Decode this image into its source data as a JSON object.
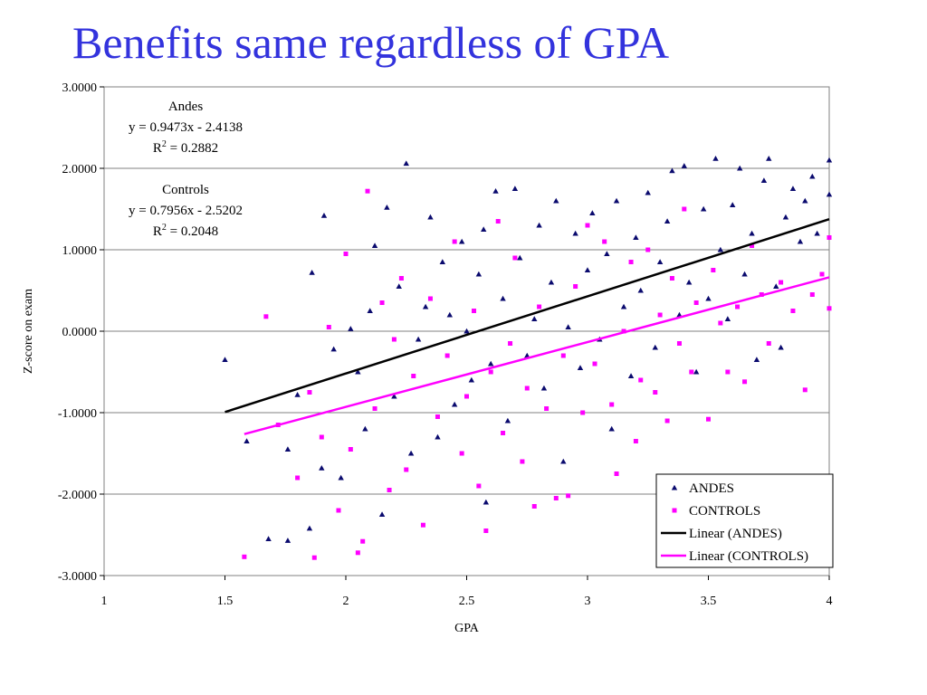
{
  "slide": {
    "title": "Benefits same regardless of GPA"
  },
  "chart_data": {
    "type": "scatter",
    "xlabel": "GPA",
    "ylabel": "Z-score on exam",
    "xlim": [
      1,
      4
    ],
    "ylim": [
      -3,
      3
    ],
    "x_ticks": [
      "1",
      "1.5",
      "2",
      "2.5",
      "3",
      "3.5",
      "4"
    ],
    "y_ticks": [
      "3.0000",
      "2.0000",
      "1.0000",
      "0.0000",
      "-1.0000",
      "-2.0000",
      "-3.0000"
    ],
    "grid": "horizontal major gridlines",
    "legend_position": "bottom-right",
    "series": [
      {
        "name": "ANDES",
        "marker": "triangle",
        "color": "#0a0a6e",
        "points": [
          [
            1.5,
            -0.35
          ],
          [
            1.59,
            -1.35
          ],
          [
            1.68,
            -2.55
          ],
          [
            1.76,
            -2.57
          ],
          [
            1.76,
            -1.45
          ],
          [
            1.8,
            -0.78
          ],
          [
            1.85,
            -2.42
          ],
          [
            1.86,
            0.72
          ],
          [
            1.9,
            -1.68
          ],
          [
            1.91,
            1.42
          ],
          [
            1.95,
            -0.22
          ],
          [
            1.98,
            -1.8
          ],
          [
            2.02,
            0.03
          ],
          [
            2.05,
            -0.5
          ],
          [
            2.08,
            -1.2
          ],
          [
            2.1,
            0.25
          ],
          [
            2.12,
            1.05
          ],
          [
            2.15,
            -2.25
          ],
          [
            2.17,
            1.52
          ],
          [
            2.2,
            -0.8
          ],
          [
            2.22,
            0.55
          ],
          [
            2.25,
            2.06
          ],
          [
            2.27,
            -1.5
          ],
          [
            2.3,
            -0.1
          ],
          [
            2.33,
            0.3
          ],
          [
            2.35,
            1.4
          ],
          [
            2.38,
            -1.3
          ],
          [
            2.4,
            0.85
          ],
          [
            2.43,
            0.2
          ],
          [
            2.45,
            -0.9
          ],
          [
            2.48,
            1.1
          ],
          [
            2.5,
            0.0
          ],
          [
            2.52,
            -0.6
          ],
          [
            2.55,
            0.7
          ],
          [
            2.57,
            1.25
          ],
          [
            2.58,
            -2.1
          ],
          [
            2.6,
            -0.4
          ],
          [
            2.62,
            1.72
          ],
          [
            2.65,
            0.4
          ],
          [
            2.67,
            -1.1
          ],
          [
            2.7,
            1.75
          ],
          [
            2.72,
            0.9
          ],
          [
            2.75,
            -0.3
          ],
          [
            2.78,
            0.15
          ],
          [
            2.8,
            1.3
          ],
          [
            2.82,
            -0.7
          ],
          [
            2.85,
            0.6
          ],
          [
            2.87,
            1.6
          ],
          [
            2.9,
            -1.6
          ],
          [
            2.92,
            0.05
          ],
          [
            2.95,
            1.2
          ],
          [
            2.97,
            -0.45
          ],
          [
            3.0,
            0.75
          ],
          [
            3.02,
            1.45
          ],
          [
            3.05,
            -0.1
          ],
          [
            3.08,
            0.95
          ],
          [
            3.1,
            -1.2
          ],
          [
            3.12,
            1.6
          ],
          [
            3.15,
            0.3
          ],
          [
            3.18,
            -0.55
          ],
          [
            3.2,
            1.15
          ],
          [
            3.22,
            0.5
          ],
          [
            3.25,
            1.7
          ],
          [
            3.28,
            -0.2
          ],
          [
            3.3,
            0.85
          ],
          [
            3.33,
            1.35
          ],
          [
            3.35,
            1.97
          ],
          [
            3.38,
            0.2
          ],
          [
            3.4,
            2.03
          ],
          [
            3.42,
            0.6
          ],
          [
            3.45,
            -0.5
          ],
          [
            3.48,
            1.5
          ],
          [
            3.5,
            0.4
          ],
          [
            3.53,
            2.12
          ],
          [
            3.55,
            1.0
          ],
          [
            3.58,
            0.15
          ],
          [
            3.6,
            1.55
          ],
          [
            3.63,
            2.0
          ],
          [
            3.65,
            0.7
          ],
          [
            3.68,
            1.2
          ],
          [
            3.7,
            -0.35
          ],
          [
            3.73,
            1.85
          ],
          [
            3.75,
            2.12
          ],
          [
            3.78,
            0.55
          ],
          [
            3.8,
            -0.2
          ],
          [
            3.82,
            1.4
          ],
          [
            3.85,
            1.75
          ],
          [
            3.88,
            1.1
          ],
          [
            3.9,
            1.6
          ],
          [
            3.93,
            1.9
          ],
          [
            3.95,
            1.2
          ],
          [
            4.0,
            2.1
          ],
          [
            4.0,
            1.68
          ]
        ],
        "trend": {
          "label": "Linear (ANDES)",
          "slope": 0.9473,
          "intercept": -2.4138,
          "x_range": [
            1.5,
            4
          ]
        }
      },
      {
        "name": "CONTROLS",
        "marker": "square",
        "color": "#ff00ff",
        "points": [
          [
            1.58,
            -2.77
          ],
          [
            1.67,
            0.18
          ],
          [
            1.72,
            -1.15
          ],
          [
            1.8,
            -1.8
          ],
          [
            1.85,
            -0.75
          ],
          [
            1.87,
            -2.78
          ],
          [
            1.9,
            -1.3
          ],
          [
            1.93,
            0.05
          ],
          [
            1.97,
            -2.2
          ],
          [
            2.0,
            0.95
          ],
          [
            2.02,
            -1.45
          ],
          [
            2.05,
            -2.72
          ],
          [
            2.07,
            -2.58
          ],
          [
            2.09,
            1.72
          ],
          [
            2.12,
            -0.95
          ],
          [
            2.15,
            0.35
          ],
          [
            2.18,
            -1.95
          ],
          [
            2.2,
            -0.1
          ],
          [
            2.23,
            0.65
          ],
          [
            2.25,
            -1.7
          ],
          [
            2.28,
            -0.55
          ],
          [
            2.32,
            -2.38
          ],
          [
            2.35,
            0.4
          ],
          [
            2.38,
            -1.05
          ],
          [
            2.42,
            -0.3
          ],
          [
            2.45,
            1.1
          ],
          [
            2.48,
            -1.5
          ],
          [
            2.5,
            -0.8
          ],
          [
            2.53,
            0.25
          ],
          [
            2.55,
            -1.9
          ],
          [
            2.58,
            -2.45
          ],
          [
            2.6,
            -0.5
          ],
          [
            2.63,
            1.35
          ],
          [
            2.65,
            -1.25
          ],
          [
            2.68,
            -0.15
          ],
          [
            2.7,
            0.9
          ],
          [
            2.73,
            -1.6
          ],
          [
            2.75,
            -0.7
          ],
          [
            2.78,
            -2.15
          ],
          [
            2.8,
            0.3
          ],
          [
            2.83,
            -0.95
          ],
          [
            2.87,
            -2.05
          ],
          [
            2.9,
            -0.3
          ],
          [
            2.92,
            -2.02
          ],
          [
            2.95,
            0.55
          ],
          [
            2.98,
            -1.0
          ],
          [
            3.0,
            1.3
          ],
          [
            3.03,
            -0.4
          ],
          [
            3.07,
            1.1
          ],
          [
            3.1,
            -0.9
          ],
          [
            3.12,
            -1.75
          ],
          [
            3.15,
            0.0
          ],
          [
            3.18,
            0.85
          ],
          [
            3.2,
            -1.35
          ],
          [
            3.22,
            -0.6
          ],
          [
            3.25,
            1.0
          ],
          [
            3.28,
            -0.75
          ],
          [
            3.3,
            0.2
          ],
          [
            3.33,
            -1.1
          ],
          [
            3.35,
            0.65
          ],
          [
            3.38,
            -0.15
          ],
          [
            3.4,
            1.5
          ],
          [
            3.43,
            -0.5
          ],
          [
            3.45,
            0.35
          ],
          [
            3.5,
            -1.08
          ],
          [
            3.52,
            0.75
          ],
          [
            3.55,
            0.1
          ],
          [
            3.58,
            -0.5
          ],
          [
            3.62,
            0.3
          ],
          [
            3.65,
            -0.62
          ],
          [
            3.68,
            1.05
          ],
          [
            3.72,
            0.45
          ],
          [
            3.75,
            -0.15
          ],
          [
            3.8,
            0.6
          ],
          [
            3.85,
            0.25
          ],
          [
            3.9,
            -0.72
          ],
          [
            3.93,
            0.45
          ],
          [
            3.97,
            0.7
          ],
          [
            4.0,
            1.15
          ],
          [
            4.0,
            0.28
          ]
        ],
        "trend": {
          "label": "Linear (CONTROLS)",
          "slope": 0.7956,
          "intercept": -2.5202,
          "x_range": [
            1.58,
            4
          ]
        }
      }
    ],
    "annotations": [
      {
        "title": "Andes",
        "equation": "y = 0.9473x - 2.4138",
        "r2_label": "R",
        "r2_sup": "2",
        "r2_value": " = 0.2882"
      },
      {
        "title": "Controls",
        "equation": "y = 0.7956x - 2.5202",
        "r2_label": "R",
        "r2_sup": "2",
        "r2_value": " = 0.2048"
      }
    ],
    "legend": [
      {
        "label": "ANDES",
        "kind": "triangle",
        "color": "#0a0a6e"
      },
      {
        "label": "CONTROLS",
        "kind": "square",
        "color": "#ff00ff"
      },
      {
        "label": "Linear (ANDES)",
        "kind": "line",
        "color": "#000000"
      },
      {
        "label": "Linear (CONTROLS)",
        "kind": "line",
        "color": "#ff00ff"
      }
    ]
  }
}
